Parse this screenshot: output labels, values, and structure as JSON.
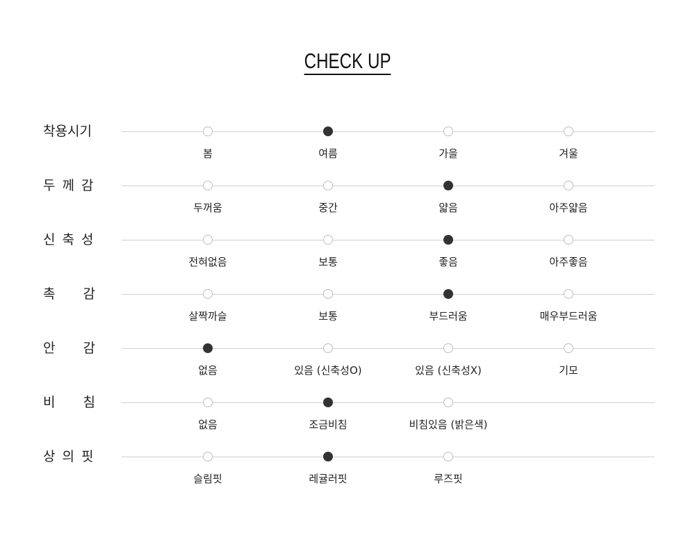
{
  "title": "CHECK UP",
  "colors": {
    "selected": "#333333",
    "unselected_border": "#bdbdbd",
    "line": "#d0d0d0"
  },
  "rows": [
    {
      "label": "착용시기",
      "options": [
        "봄",
        "여름",
        "가을",
        "겨울"
      ],
      "selected": 1
    },
    {
      "label": "두께감",
      "options": [
        "두꺼움",
        "중간",
        "얇음",
        "아주얇음"
      ],
      "selected": 2
    },
    {
      "label": "신축성",
      "options": [
        "전혀없음",
        "보통",
        "좋음",
        "아주좋음"
      ],
      "selected": 2
    },
    {
      "label": "촉감",
      "options": [
        "살짝까슬",
        "보통",
        "부드러움",
        "매우부드러움"
      ],
      "selected": 2
    },
    {
      "label": "안감",
      "options": [
        "없음",
        "있음 (신축성O)",
        "있음 (신축성X)",
        "기모"
      ],
      "selected": 0
    },
    {
      "label": "비침",
      "options": [
        "없음",
        "조금비침",
        "비침있음 (밝은색)"
      ],
      "selected": 1
    },
    {
      "label": "상의핏",
      "options": [
        "슬림핏",
        "레귤러핏",
        "루즈핏"
      ],
      "selected": 1
    }
  ]
}
